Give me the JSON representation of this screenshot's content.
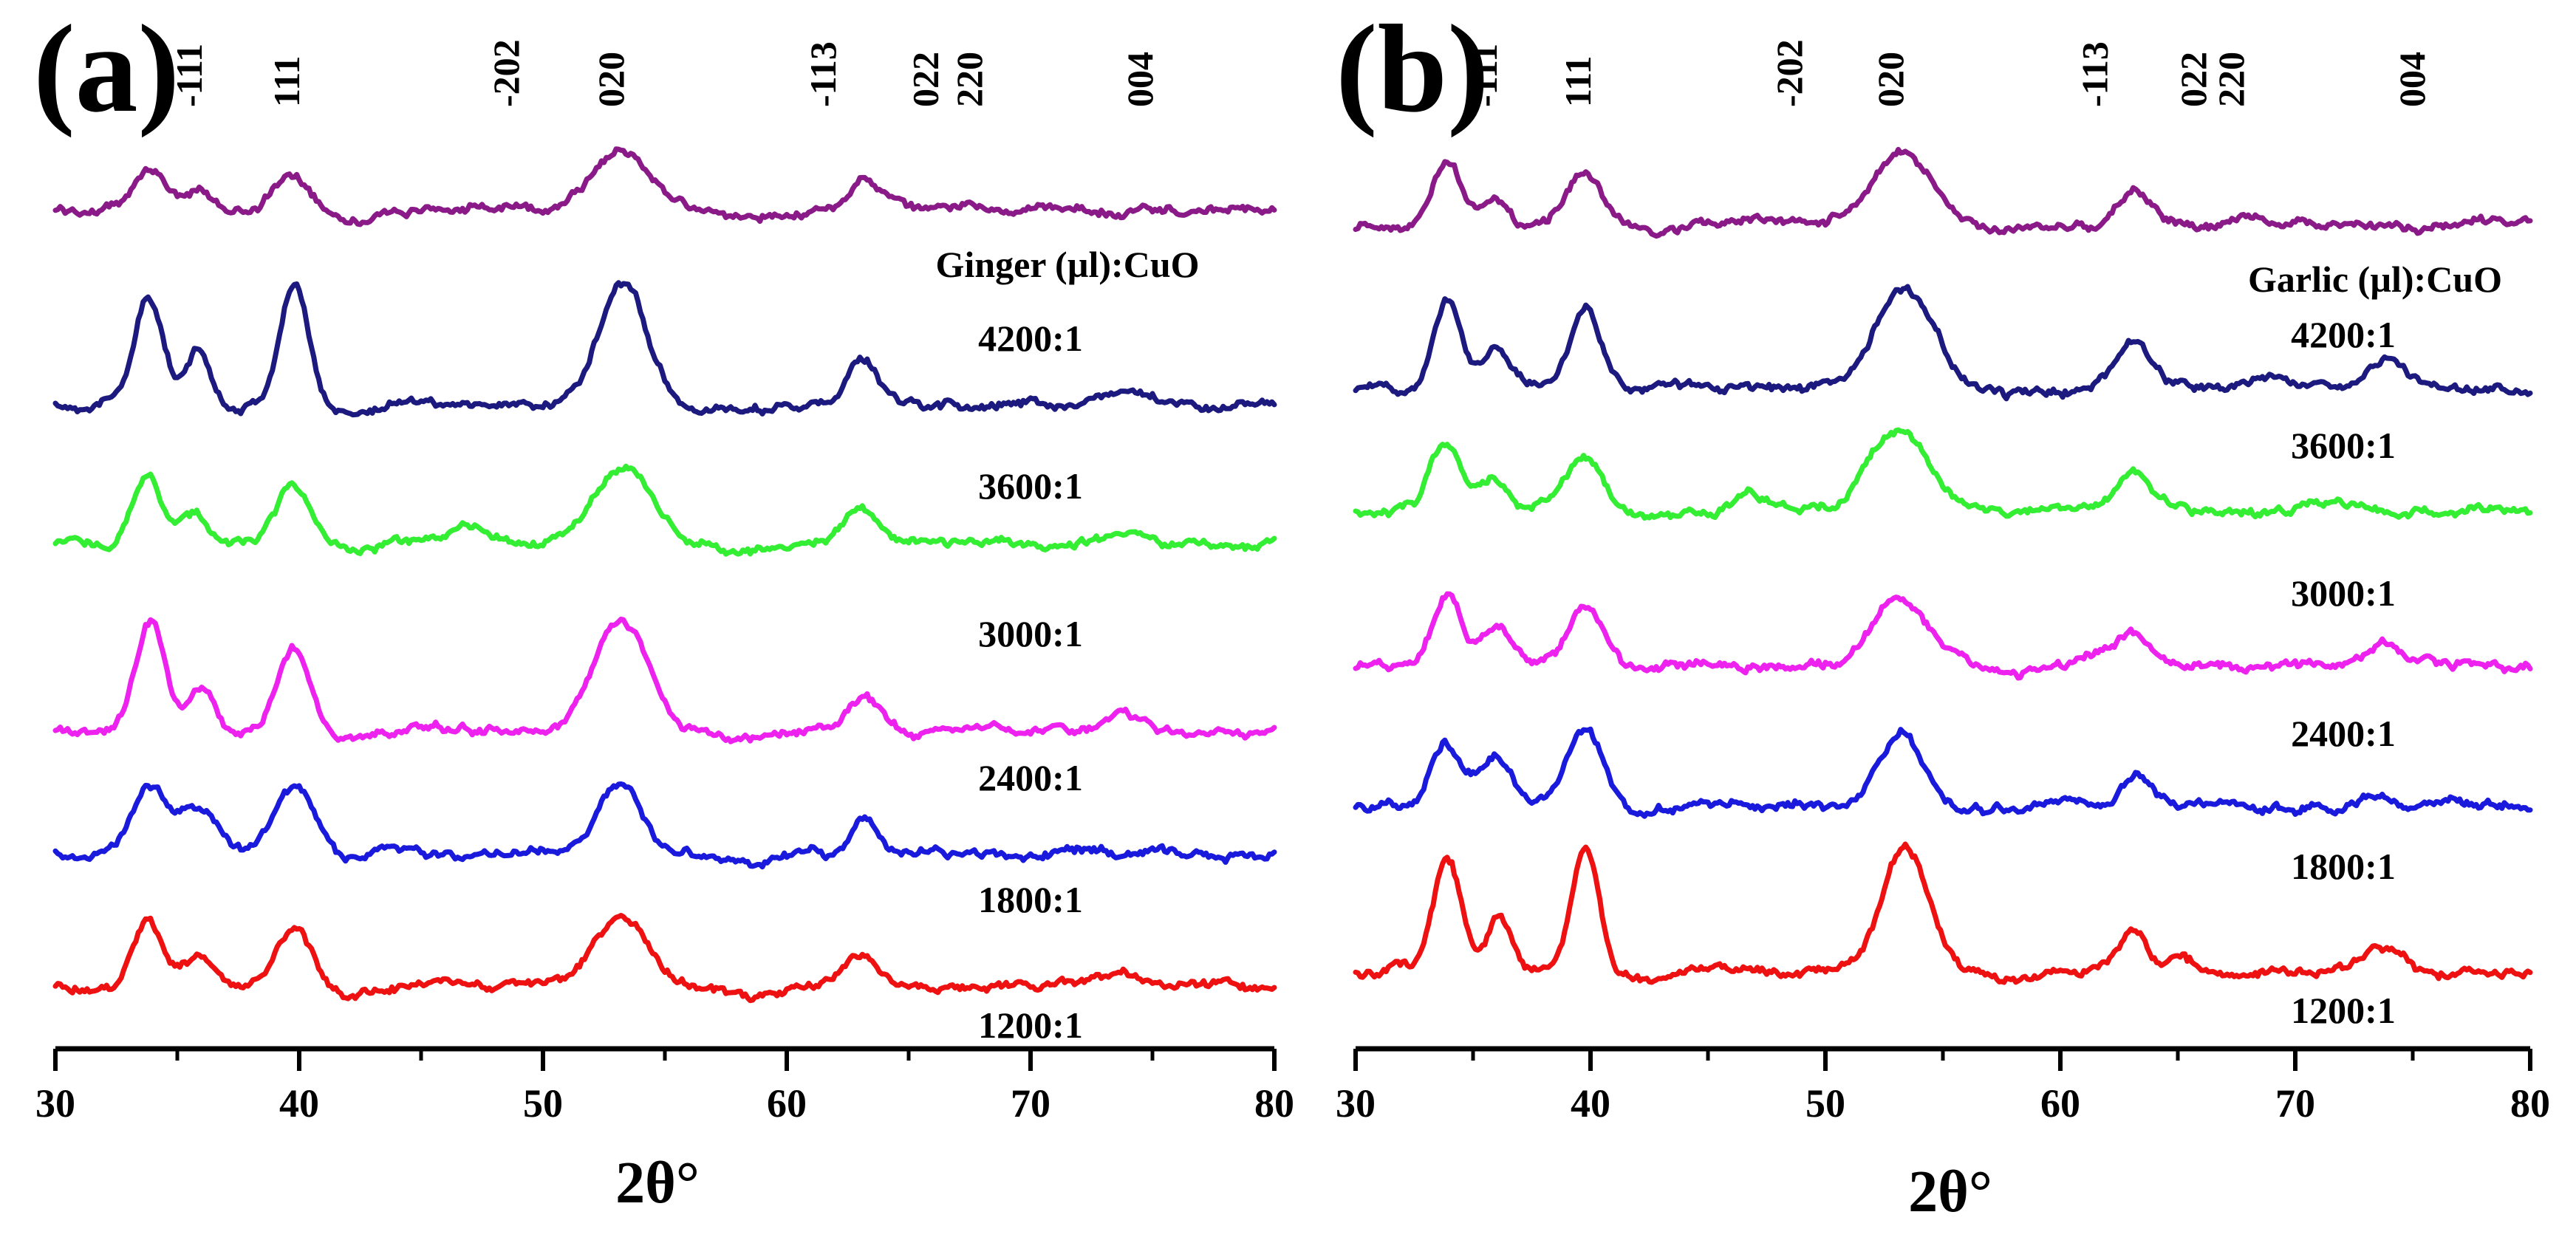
{
  "chart_data": [
    {
      "type": "line",
      "panel_label": "(a)",
      "xlabel": "2θ°",
      "xlim": [
        30,
        80
      ],
      "x_ticks": [
        30,
        40,
        50,
        60,
        70,
        80
      ],
      "legend_title": "Ginger (µl):CuO",
      "planes": [
        {
          "label": "-111",
          "x": 36.0
        },
        {
          "label": "111",
          "x": 40.0
        },
        {
          "label": "-202",
          "x": 49.0
        },
        {
          "label": "020",
          "x": 53.3
        },
        {
          "label": "-113",
          "x": 62.0
        },
        {
          "label": "022",
          "x": 66.2
        },
        {
          "label": "220",
          "x": 68.0
        },
        {
          "label": "004",
          "x": 75.0
        }
      ],
      "series": [
        {
          "name": "unlabeled",
          "color": "#8B1A89",
          "noise": 3,
          "peaks": [
            [
              33.9,
              58,
              0.7
            ],
            [
              35.9,
              24,
              0.5
            ],
            [
              39.8,
              48,
              0.8
            ],
            [
              53.2,
              78,
              1.3
            ],
            [
              63.2,
              40,
              0.7
            ],
            [
              67.8,
              10,
              0.6
            ],
            [
              46.9,
              6,
              0.8
            ]
          ]
        },
        {
          "name": "4200:1",
          "color": "#1C1A7E",
          "noise": 3,
          "peaks": [
            [
              33.8,
              145,
              0.6
            ],
            [
              35.9,
              70,
              0.5
            ],
            [
              39.8,
              162,
              0.6
            ],
            [
              53.3,
              165,
              1.0
            ],
            [
              63.1,
              60,
              0.6
            ],
            [
              73.8,
              22,
              0.7
            ],
            [
              44.8,
              8,
              1.0
            ]
          ]
        },
        {
          "name": "3600:1",
          "color": "#33EE33",
          "noise": 3,
          "peaks": [
            [
              33.8,
              90,
              0.6
            ],
            [
              35.7,
              40,
              0.5
            ],
            [
              39.8,
              78,
              0.7
            ],
            [
              53.3,
              105,
              1.2
            ],
            [
              63.1,
              50,
              0.7
            ],
            [
              46.9,
              20,
              0.6
            ],
            [
              73.5,
              12,
              0.7
            ]
          ]
        },
        {
          "name": "3000:1",
          "color": "#EE22EE",
          "noise": 3,
          "peaks": [
            [
              33.9,
              148,
              0.6
            ],
            [
              36.0,
              60,
              0.5
            ],
            [
              39.8,
              115,
              0.7
            ],
            [
              53.2,
              148,
              1.1
            ],
            [
              63.1,
              50,
              0.7
            ],
            [
              73.8,
              22,
              0.7
            ],
            [
              44.5,
              8,
              1.0
            ]
          ]
        },
        {
          "name": "2400:1",
          "color": "#1A1ADD",
          "noise": 3,
          "peaks": [
            [
              33.8,
              88,
              0.7
            ],
            [
              35.8,
              62,
              0.8
            ],
            [
              39.8,
              95,
              0.8
            ],
            [
              53.1,
              88,
              0.9
            ],
            [
              63.2,
              45,
              0.5
            ],
            [
              43.5,
              8,
              0.6
            ]
          ]
        },
        {
          "name": "1800:1",
          "color": "#EE1111",
          "noise": 3,
          "peaks": [
            [
              33.8,
              92,
              0.6
            ],
            [
              35.9,
              42,
              0.6
            ],
            [
              39.8,
              80,
              0.7
            ],
            [
              53.2,
              95,
              1.1
            ],
            [
              63.1,
              40,
              0.6
            ],
            [
              72.5,
              12,
              0.7
            ],
            [
              73.8,
              18,
              0.5
            ]
          ]
        }
      ],
      "sample_labels": [
        "4200:1",
        "3600:1",
        "3000:1",
        "2400:1",
        "1800:1",
        "1200:1"
      ]
    },
    {
      "type": "line",
      "panel_label": "(b)",
      "xlabel": "2θ°",
      "xlim": [
        30,
        80
      ],
      "x_ticks": [
        30,
        40,
        50,
        60,
        70,
        80
      ],
      "legend_title": "Garlic (µl):CuO",
      "planes": [
        {
          "label": "-111",
          "x": 36.0
        },
        {
          "label": "111",
          "x": 40.0
        },
        {
          "label": "-202",
          "x": 49.0
        },
        {
          "label": "020",
          "x": 53.3
        },
        {
          "label": "-113",
          "x": 62.0
        },
        {
          "label": "022",
          "x": 66.2
        },
        {
          "label": "220",
          "x": 67.8
        },
        {
          "label": "004",
          "x": 75.5
        }
      ],
      "series": [
        {
          "name": "unlabeled",
          "color": "#8B1A89",
          "noise": 3,
          "peaks": [
            [
              33.9,
              90,
              0.6
            ],
            [
              35.9,
              42,
              0.5
            ],
            [
              39.8,
              70,
              0.8
            ],
            [
              53.2,
              95,
              1.3
            ],
            [
              63.2,
              50,
              0.7
            ],
            [
              67.8,
              12,
              0.6
            ],
            [
              46.8,
              8,
              0.8
            ]
          ]
        },
        {
          "name": "4200:1",
          "color": "#1C1A7E",
          "noise": 3,
          "peaks": [
            [
              33.9,
              125,
              0.6
            ],
            [
              36.0,
              58,
              0.6
            ],
            [
              39.8,
              112,
              0.7
            ],
            [
              53.4,
              135,
              1.2
            ],
            [
              63.1,
              62,
              0.7
            ],
            [
              73.8,
              38,
              0.8
            ],
            [
              43.0,
              12,
              0.8
            ],
            [
              69.0,
              14,
              0.7
            ]
          ]
        },
        {
          "name": "3600:1",
          "color": "#33EE33",
          "noise": 3,
          "peaks": [
            [
              33.8,
              95,
              0.6
            ],
            [
              35.8,
              40,
              0.6
            ],
            [
              39.8,
              70,
              0.8
            ],
            [
              53.3,
              105,
              1.2
            ],
            [
              63.1,
              50,
              0.7
            ],
            [
              46.9,
              18,
              0.6
            ],
            [
              51.8,
              22,
              0.6
            ],
            [
              71.5,
              10,
              0.8
            ]
          ]
        },
        {
          "name": "3000:1",
          "color": "#EE22EE",
          "noise": 3,
          "peaks": [
            [
              33.9,
              95,
              0.6
            ],
            [
              36.0,
              55,
              0.6
            ],
            [
              39.8,
              80,
              0.7
            ],
            [
              53.3,
              88,
              1.2
            ],
            [
              63.1,
              40,
              0.6
            ],
            [
              73.8,
              25,
              0.7
            ],
            [
              61.5,
              12,
              0.8
            ]
          ]
        },
        {
          "name": "2400:1",
          "color": "#1A1ADD",
          "noise": 3,
          "peaks": [
            [
              33.8,
              90,
              0.6
            ],
            [
              35.9,
              70,
              0.7
            ],
            [
              39.8,
              100,
              0.8
            ],
            [
              53.2,
              95,
              0.9
            ],
            [
              63.2,
              40,
              0.5
            ],
            [
              73.5,
              10,
              0.7
            ]
          ]
        },
        {
          "name": "1800:1",
          "color": "#EE1111",
          "noise": 3,
          "peaks": [
            [
              33.9,
              150,
              0.6
            ],
            [
              36.1,
              75,
              0.5
            ],
            [
              39.8,
              170,
              0.6
            ],
            [
              53.4,
              168,
              1.0
            ],
            [
              63.1,
              55,
              0.6
            ],
            [
              73.8,
              35,
              0.8
            ],
            [
              65.0,
              18,
              0.6
            ],
            [
              45.5,
              8,
              0.8
            ]
          ]
        }
      ],
      "sample_labels": [
        "4200:1",
        "3600:1",
        "3000:1",
        "2400:1",
        "1800:1",
        "1200:1"
      ]
    }
  ]
}
